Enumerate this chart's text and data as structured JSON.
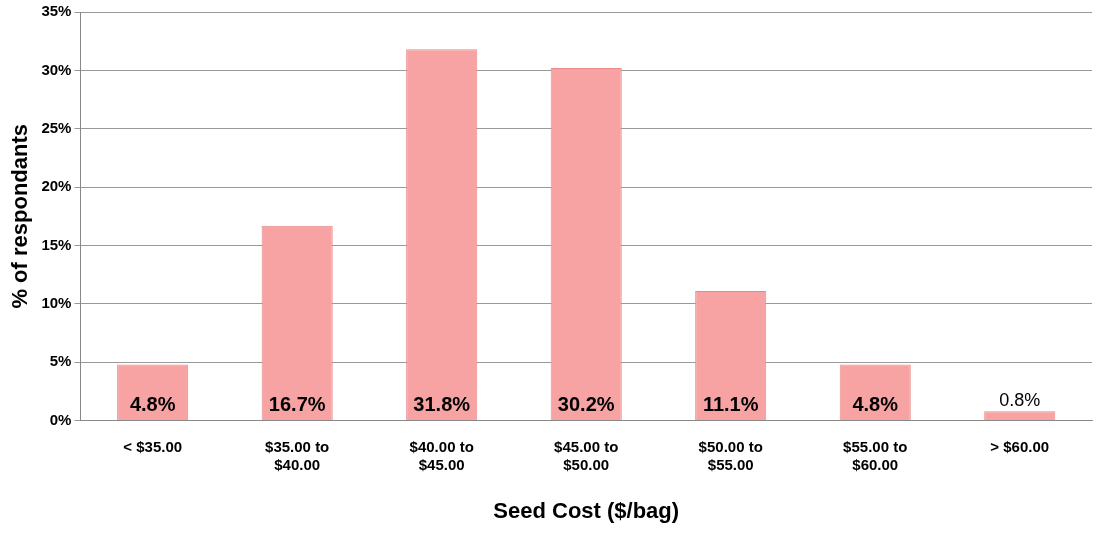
{
  "chart_data": {
    "type": "bar",
    "xlabel": "Seed Cost ($/bag)",
    "ylabel": "% of respondants",
    "categories": [
      "< $35.00",
      "$35.00 to $40.00",
      "$40.00 to $45.00",
      "$45.00 to $50.00",
      "$50.00 to $55.00",
      "$55.00 to $60.00",
      "> $60.00"
    ],
    "values": [
      4.8,
      16.7,
      31.8,
      30.2,
      11.1,
      4.8,
      0.8
    ],
    "value_labels": [
      "4.8%",
      "16.7%",
      "31.8%",
      "30.2%",
      "11.1%",
      "4.8%",
      "0.8%"
    ],
    "color": "#f7a3a3",
    "ylim": [
      0,
      35
    ],
    "yticks": [
      {
        "value": 0,
        "label": "0%"
      },
      {
        "value": 5,
        "label": "5%"
      },
      {
        "value": 10,
        "label": "10%"
      },
      {
        "value": 15,
        "label": "15%"
      },
      {
        "value": 20,
        "label": "20%"
      },
      {
        "value": 25,
        "label": "25%"
      },
      {
        "value": 30,
        "label": "30%"
      },
      {
        "value": 35,
        "label": "35%"
      }
    ],
    "grid": "y",
    "legend": false
  }
}
